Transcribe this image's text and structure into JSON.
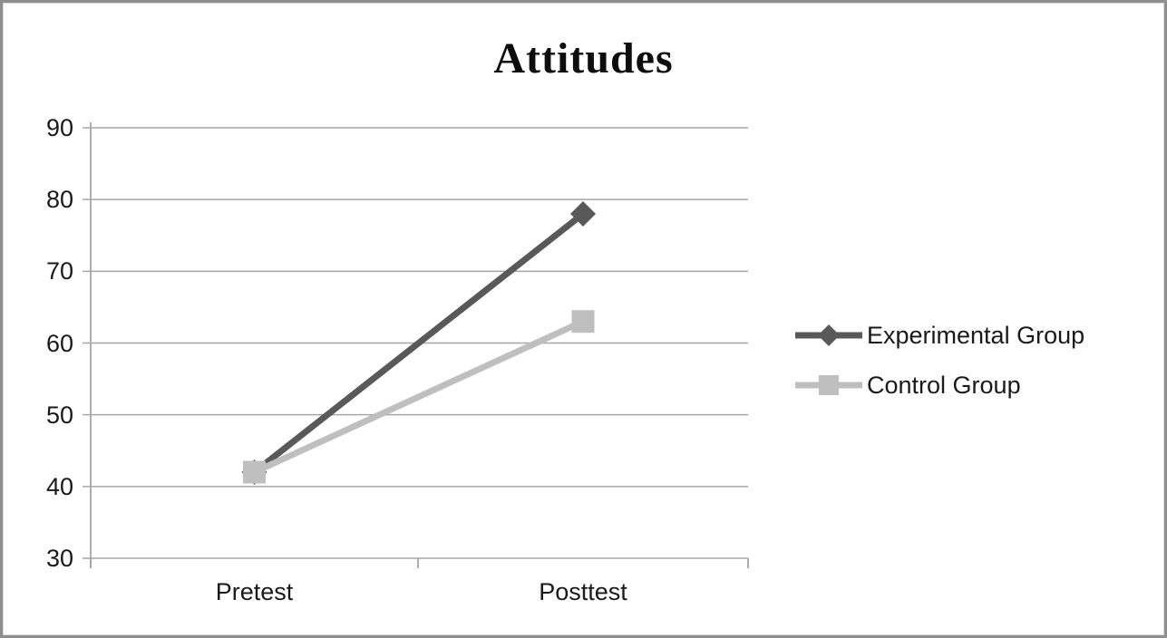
{
  "window": {
    "background_color": "#ffffff",
    "border_color": "#8f8f8f"
  },
  "chart_data": {
    "type": "line",
    "title": "Attitudes",
    "categories": [
      "Pretest",
      "Posttest"
    ],
    "series": [
      {
        "name": "Experimental Group",
        "values": [
          42,
          78
        ],
        "color": "#595959",
        "marker": "diamond"
      },
      {
        "name": "Control Group",
        "values": [
          42,
          63
        ],
        "color": "#bfbfbf",
        "marker": "square"
      }
    ],
    "xlabel": "",
    "ylabel": "",
    "ylim": [
      30,
      90
    ],
    "yticks": [
      30,
      40,
      50,
      60,
      70,
      80,
      90
    ],
    "grid": true,
    "gridline_color": "#a6a6a6",
    "axis_color": "#a6a6a6",
    "text_color": "#1a1a1a",
    "legend_position": "right"
  }
}
